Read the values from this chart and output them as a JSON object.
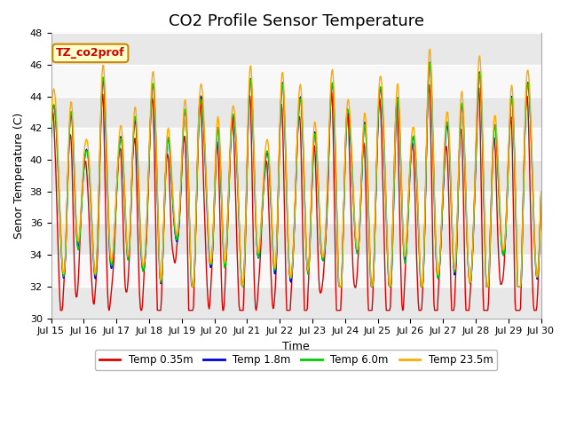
{
  "title": "CO2 Profile Sensor Temperature",
  "ylabel": "Senor Temperature (C)",
  "xlabel": "Time",
  "ylim": [
    30,
    48
  ],
  "yticks": [
    30,
    32,
    34,
    36,
    38,
    40,
    42,
    44,
    46,
    48
  ],
  "annotation_text": "TZ_co2prof",
  "annotation_color": "#cc0000",
  "annotation_bg": "#ffffcc",
  "annotation_edge": "#cc8800",
  "colors": {
    "red": "#dd0000",
    "blue": "#0000dd",
    "green": "#00cc00",
    "orange": "#ffaa00"
  },
  "legend_labels": [
    "Temp 0.35m",
    "Temp 1.8m",
    "Temp 6.0m",
    "Temp 23.5m"
  ],
  "bg_color": "#ffffff",
  "plot_bg": "#f0f0f0",
  "x_tick_labels": [
    "Jul 15",
    "Jul 16",
    "Jul 17",
    "Jul 18",
    "Jul 19",
    "Jul 20",
    "Jul 21",
    "Jul 22",
    "Jul 23",
    "Jul 24",
    "Jul 25",
    "Jul 26",
    "Jul 27",
    "Jul 28",
    "Jul 29",
    "Jul 30"
  ],
  "title_fontsize": 13,
  "axis_label_fontsize": 9,
  "tick_fontsize": 8,
  "linewidth": 1.0
}
